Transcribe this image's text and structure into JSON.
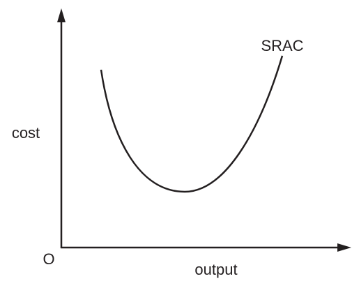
{
  "axes": {
    "y_label": "cost",
    "x_label": "output",
    "origin": "O"
  },
  "curves": [
    {
      "label": "SRAC"
    }
  ]
}
